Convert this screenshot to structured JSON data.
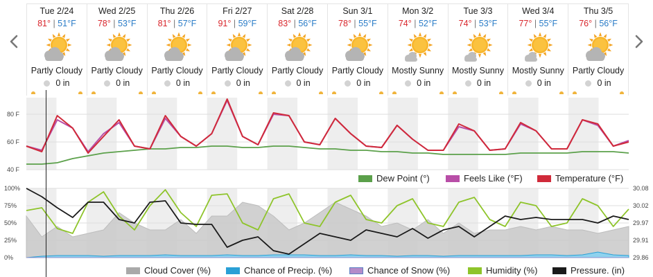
{
  "nav": {
    "prev_icon": "chevron-left-icon",
    "next_icon": "chevron-right-icon"
  },
  "days": [
    {
      "date": "Tue 2/24",
      "hi": "81°",
      "lo": "51°F",
      "condition": "Partly Cloudy",
      "precip": "0 in",
      "icon": "partly-cloudy-icon"
    },
    {
      "date": "Wed 2/25",
      "hi": "78°",
      "lo": "53°F",
      "condition": "Partly Cloudy",
      "precip": "0 in",
      "icon": "partly-cloudy-icon"
    },
    {
      "date": "Thu 2/26",
      "hi": "81°",
      "lo": "57°F",
      "condition": "Partly Cloudy",
      "precip": "0 in",
      "icon": "partly-cloudy-icon"
    },
    {
      "date": "Fri 2/27",
      "hi": "91°",
      "lo": "59°F",
      "condition": "Partly Cloudy",
      "precip": "0 in",
      "icon": "partly-cloudy-icon"
    },
    {
      "date": "Sat 2/28",
      "hi": "83°",
      "lo": "56°F",
      "condition": "Partly Cloudy",
      "precip": "0 in",
      "icon": "partly-cloudy-icon"
    },
    {
      "date": "Sun 3/1",
      "hi": "78°",
      "lo": "55°F",
      "condition": "Partly Cloudy",
      "precip": "0 in",
      "icon": "partly-cloudy-icon"
    },
    {
      "date": "Mon 3/2",
      "hi": "74°",
      "lo": "52°F",
      "condition": "Mostly Sunny",
      "precip": "0 in",
      "icon": "mostly-sunny-icon"
    },
    {
      "date": "Tue 3/3",
      "hi": "74°",
      "lo": "53°F",
      "condition": "Mostly Sunny",
      "precip": "0 in",
      "icon": "mostly-sunny-icon"
    },
    {
      "date": "Wed 3/4",
      "hi": "77°",
      "lo": "55°F",
      "condition": "Mostly Sunny",
      "precip": "0 in",
      "icon": "mostly-sunny-icon"
    },
    {
      "date": "Thu 3/5",
      "hi": "76°",
      "lo": "56°F",
      "condition": "Partly Cloudy",
      "precip": "0 in",
      "icon": "partly-cloudy-icon"
    }
  ],
  "chart_data": [
    {
      "type": "line",
      "ylim": [
        40,
        92
      ],
      "y_ticks": [
        "80 F",
        "60 F",
        "40 F"
      ],
      "y_tick_values": [
        80,
        60,
        40
      ],
      "grid": true,
      "legend_position": "bottom-right",
      "series": [
        {
          "name": "Dew Point (°)",
          "color": "#5ba04a",
          "values": [
            44,
            44,
            45,
            48,
            50,
            52,
            53,
            54,
            55,
            55,
            56,
            56,
            57,
            57,
            56,
            56,
            57,
            57,
            56,
            55,
            55,
            54,
            54,
            53,
            53,
            52,
            52,
            51,
            51,
            51,
            51,
            51,
            52,
            52,
            52,
            52,
            53,
            53,
            53,
            52
          ]
        },
        {
          "name": "Feels Like (°F)",
          "color": "#b84ea7",
          "values": [
            57,
            54,
            76,
            70,
            53,
            66,
            74,
            57,
            55,
            77,
            64,
            57,
            66,
            90,
            64,
            58,
            80,
            79,
            60,
            58,
            77,
            66,
            57,
            56,
            72,
            62,
            54,
            54,
            71,
            68,
            54,
            55,
            73,
            68,
            55,
            55,
            76,
            72,
            57,
            61
          ]
        },
        {
          "name": "Temperature (°F)",
          "color": "#d02a3a",
          "values": [
            57,
            53,
            79,
            70,
            52,
            64,
            76,
            57,
            55,
            79,
            64,
            57,
            66,
            91,
            64,
            58,
            81,
            79,
            60,
            58,
            77,
            66,
            57,
            56,
            72,
            62,
            54,
            54,
            73,
            68,
            54,
            55,
            74,
            68,
            55,
            55,
            76,
            73,
            57,
            60
          ]
        }
      ]
    },
    {
      "type": "area",
      "ylim": [
        0,
        100
      ],
      "y_ticks": [
        "100%",
        "75%",
        "50%",
        "25%",
        "0%"
      ],
      "y_tick_values": [
        100,
        75,
        50,
        25,
        0
      ],
      "y2_ticks": [
        "30.08",
        "30.02",
        "29.97",
        "29.91",
        "29.86"
      ],
      "legend_position": "bottom",
      "series": [
        {
          "name": "Cloud Cover (%)",
          "color": "#a9a9a9",
          "values": [
            60,
            30,
            45,
            30,
            35,
            40,
            65,
            50,
            40,
            40,
            55,
            35,
            60,
            60,
            80,
            75,
            60,
            40,
            50,
            65,
            80,
            70,
            60,
            45,
            50,
            40,
            55,
            35,
            50,
            35,
            40,
            40,
            45,
            40,
            45,
            40,
            40,
            35,
            40,
            45
          ]
        },
        {
          "name": "Chance of Precip. (%)",
          "color": "#2aa0d6",
          "values": [
            0,
            2,
            3,
            3,
            3,
            2,
            3,
            3,
            3,
            4,
            3,
            3,
            3,
            4,
            3,
            3,
            4,
            4,
            4,
            3,
            3,
            4,
            3,
            3,
            2,
            3,
            3,
            2,
            3,
            3,
            3,
            3,
            3,
            4,
            4,
            3,
            4,
            8,
            4,
            3
          ]
        },
        {
          "name": "Chance of Snow (%)",
          "color": "#b48bc9",
          "values": [
            0,
            0,
            0,
            0,
            0,
            0,
            0,
            0,
            0,
            0,
            0,
            0,
            0,
            0,
            0,
            0,
            0,
            0,
            0,
            0,
            0,
            0,
            0,
            0,
            0,
            0,
            0,
            0,
            0,
            0,
            0,
            0,
            0,
            0,
            0,
            0,
            0,
            0,
            0,
            0
          ]
        },
        {
          "name": "Humidity (%)",
          "color": "#8ec42a",
          "values": [
            68,
            72,
            42,
            35,
            80,
            95,
            60,
            40,
            75,
            98,
            65,
            45,
            90,
            92,
            50,
            40,
            85,
            92,
            50,
            45,
            80,
            90,
            55,
            50,
            75,
            85,
            50,
            45,
            80,
            87,
            55,
            45,
            80,
            75,
            45,
            50,
            85,
            75,
            45,
            70
          ]
        },
        {
          "name": "Pressure. (in)",
          "color": "#1a1a1a",
          "values": [
            100,
            88,
            72,
            58,
            80,
            80,
            55,
            50,
            80,
            82,
            50,
            48,
            48,
            15,
            25,
            30,
            10,
            5,
            20,
            35,
            30,
            25,
            40,
            35,
            30,
            42,
            28,
            40,
            45,
            30,
            45,
            60,
            55,
            58,
            55,
            55,
            55,
            50,
            60,
            55
          ]
        }
      ]
    }
  ]
}
